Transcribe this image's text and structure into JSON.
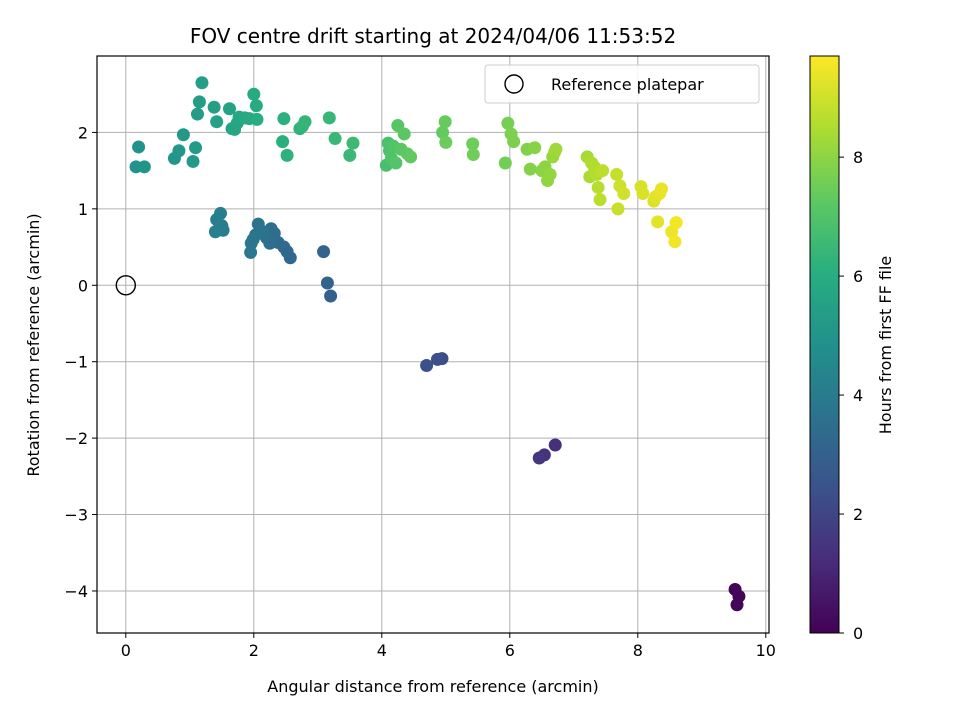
{
  "chart_data": {
    "type": "scatter",
    "title": "FOV centre drift starting at 2024/04/06 11:53:52",
    "xlabel": "Angular distance from reference (arcmin)",
    "ylabel": "Rotation from reference (arcmin)",
    "xlim": [
      -0.45,
      10.05
    ],
    "ylim": [
      -4.55,
      3.0
    ],
    "xticks": [
      0,
      2,
      4,
      6,
      8,
      10
    ],
    "yticks": [
      -4,
      -3,
      -2,
      -1,
      0,
      1,
      2
    ],
    "grid": true,
    "legend": {
      "placement": "top-right",
      "entries": [
        "Reference platepar"
      ]
    },
    "reference_point": {
      "x": 0,
      "y": 0,
      "name": "Reference platepar"
    },
    "colorbar": {
      "label": "Hours from first FF file",
      "range": [
        0,
        9.7
      ],
      "ticks": [
        0,
        2,
        4,
        6,
        8
      ],
      "colormap": "viridis"
    },
    "points": [
      {
        "x": 9.52,
        "y": -3.98,
        "c": 0.05
      },
      {
        "x": 9.58,
        "y": -4.07,
        "c": 0.1
      },
      {
        "x": 9.55,
        "y": -4.18,
        "c": 0.15
      },
      {
        "x": 6.71,
        "y": -2.09,
        "c": 1.3
      },
      {
        "x": 6.54,
        "y": -2.22,
        "c": 1.4
      },
      {
        "x": 6.46,
        "y": -2.26,
        "c": 1.5
      },
      {
        "x": 4.94,
        "y": -0.96,
        "c": 2.3
      },
      {
        "x": 4.87,
        "y": -0.97,
        "c": 2.35
      },
      {
        "x": 4.7,
        "y": -1.05,
        "c": 2.4
      },
      {
        "x": 3.2,
        "y": -0.14,
        "c": 3.0
      },
      {
        "x": 3.15,
        "y": 0.03,
        "c": 3.05
      },
      {
        "x": 3.09,
        "y": 0.44,
        "c": 3.1
      },
      {
        "x": 2.57,
        "y": 0.36,
        "c": 3.2
      },
      {
        "x": 2.52,
        "y": 0.44,
        "c": 3.25
      },
      {
        "x": 2.47,
        "y": 0.5,
        "c": 3.3
      },
      {
        "x": 2.38,
        "y": 0.56,
        "c": 3.35
      },
      {
        "x": 2.32,
        "y": 0.68,
        "c": 3.4
      },
      {
        "x": 2.27,
        "y": 0.74,
        "c": 3.45
      },
      {
        "x": 2.25,
        "y": 0.55,
        "c": 3.5
      },
      {
        "x": 2.2,
        "y": 0.62,
        "c": 3.55
      },
      {
        "x": 2.14,
        "y": 0.7,
        "c": 3.6
      },
      {
        "x": 2.07,
        "y": 0.8,
        "c": 3.65
      },
      {
        "x": 2.03,
        "y": 0.66,
        "c": 3.7
      },
      {
        "x": 1.99,
        "y": 0.6,
        "c": 3.75
      },
      {
        "x": 1.96,
        "y": 0.55,
        "c": 3.8
      },
      {
        "x": 1.95,
        "y": 0.43,
        "c": 3.85
      },
      {
        "x": 1.52,
        "y": 0.72,
        "c": 4.0
      },
      {
        "x": 1.5,
        "y": 0.78,
        "c": 4.05
      },
      {
        "x": 1.48,
        "y": 0.94,
        "c": 4.1
      },
      {
        "x": 1.42,
        "y": 0.86,
        "c": 4.15
      },
      {
        "x": 1.4,
        "y": 0.7,
        "c": 4.2
      },
      {
        "x": 0.16,
        "y": 1.55,
        "c": 4.9
      },
      {
        "x": 0.2,
        "y": 1.81,
        "c": 4.95
      },
      {
        "x": 0.29,
        "y": 1.55,
        "c": 5.0
      },
      {
        "x": 0.76,
        "y": 1.66,
        "c": 5.05
      },
      {
        "x": 0.83,
        "y": 1.76,
        "c": 5.1
      },
      {
        "x": 0.9,
        "y": 1.97,
        "c": 5.15
      },
      {
        "x": 1.05,
        "y": 1.62,
        "c": 5.2
      },
      {
        "x": 1.09,
        "y": 1.8,
        "c": 5.25
      },
      {
        "x": 1.12,
        "y": 2.24,
        "c": 5.3
      },
      {
        "x": 1.15,
        "y": 2.4,
        "c": 5.35
      },
      {
        "x": 1.19,
        "y": 2.65,
        "c": 5.4
      },
      {
        "x": 1.38,
        "y": 2.33,
        "c": 5.45
      },
      {
        "x": 1.42,
        "y": 2.14,
        "c": 5.5
      },
      {
        "x": 1.62,
        "y": 2.31,
        "c": 5.55
      },
      {
        "x": 1.66,
        "y": 2.05,
        "c": 5.6
      },
      {
        "x": 1.7,
        "y": 2.04,
        "c": 5.65
      },
      {
        "x": 1.74,
        "y": 2.12,
        "c": 5.7
      },
      {
        "x": 1.77,
        "y": 2.2,
        "c": 5.75
      },
      {
        "x": 1.86,
        "y": 2.19,
        "c": 5.8
      },
      {
        "x": 1.93,
        "y": 2.18,
        "c": 5.85
      },
      {
        "x": 2.0,
        "y": 2.5,
        "c": 5.9
      },
      {
        "x": 2.04,
        "y": 2.35,
        "c": 5.95
      },
      {
        "x": 2.05,
        "y": 2.17,
        "c": 6.0
      },
      {
        "x": 2.45,
        "y": 1.88,
        "c": 6.1
      },
      {
        "x": 2.47,
        "y": 2.18,
        "c": 6.15
      },
      {
        "x": 2.52,
        "y": 1.7,
        "c": 6.2
      },
      {
        "x": 2.72,
        "y": 2.05,
        "c": 6.25
      },
      {
        "x": 2.76,
        "y": 2.08,
        "c": 6.3
      },
      {
        "x": 2.8,
        "y": 2.14,
        "c": 6.35
      },
      {
        "x": 3.18,
        "y": 2.19,
        "c": 6.4
      },
      {
        "x": 3.27,
        "y": 1.92,
        "c": 6.45
      },
      {
        "x": 3.5,
        "y": 1.7,
        "c": 6.5
      },
      {
        "x": 3.55,
        "y": 1.86,
        "c": 6.55
      },
      {
        "x": 4.07,
        "y": 1.57,
        "c": 6.8
      },
      {
        "x": 4.1,
        "y": 1.86,
        "c": 6.85
      },
      {
        "x": 4.12,
        "y": 1.76,
        "c": 6.9
      },
      {
        "x": 4.15,
        "y": 1.66,
        "c": 6.95
      },
      {
        "x": 4.18,
        "y": 1.82,
        "c": 7.0
      },
      {
        "x": 4.22,
        "y": 1.6,
        "c": 7.05
      },
      {
        "x": 4.25,
        "y": 2.09,
        "c": 7.1
      },
      {
        "x": 4.3,
        "y": 1.78,
        "c": 7.15
      },
      {
        "x": 4.35,
        "y": 1.98,
        "c": 7.2
      },
      {
        "x": 4.4,
        "y": 1.72,
        "c": 7.25
      },
      {
        "x": 4.45,
        "y": 1.68,
        "c": 7.3
      },
      {
        "x": 4.95,
        "y": 2.0,
        "c": 7.35
      },
      {
        "x": 4.99,
        "y": 2.14,
        "c": 7.4
      },
      {
        "x": 5.0,
        "y": 1.87,
        "c": 7.45
      },
      {
        "x": 5.42,
        "y": 1.85,
        "c": 7.5
      },
      {
        "x": 5.43,
        "y": 1.71,
        "c": 7.55
      },
      {
        "x": 5.93,
        "y": 1.6,
        "c": 7.6
      },
      {
        "x": 5.97,
        "y": 2.12,
        "c": 7.65
      },
      {
        "x": 6.02,
        "y": 1.98,
        "c": 7.7
      },
      {
        "x": 6.06,
        "y": 1.88,
        "c": 7.75
      },
      {
        "x": 6.27,
        "y": 1.78,
        "c": 7.8
      },
      {
        "x": 6.32,
        "y": 1.52,
        "c": 7.85
      },
      {
        "x": 6.39,
        "y": 1.8,
        "c": 7.9
      },
      {
        "x": 6.5,
        "y": 1.5,
        "c": 7.95
      },
      {
        "x": 6.55,
        "y": 1.55,
        "c": 8.0
      },
      {
        "x": 6.59,
        "y": 1.37,
        "c": 8.05
      },
      {
        "x": 6.63,
        "y": 1.45,
        "c": 8.1
      },
      {
        "x": 6.67,
        "y": 1.68,
        "c": 8.15
      },
      {
        "x": 6.7,
        "y": 1.74,
        "c": 8.2
      },
      {
        "x": 6.72,
        "y": 1.78,
        "c": 8.25
      },
      {
        "x": 7.21,
        "y": 1.68,
        "c": 8.4
      },
      {
        "x": 7.25,
        "y": 1.42,
        "c": 8.45
      },
      {
        "x": 7.28,
        "y": 1.6,
        "c": 8.5
      },
      {
        "x": 7.32,
        "y": 1.55,
        "c": 8.55
      },
      {
        "x": 7.36,
        "y": 1.45,
        "c": 8.6
      },
      {
        "x": 7.38,
        "y": 1.28,
        "c": 8.65
      },
      {
        "x": 7.41,
        "y": 1.12,
        "c": 8.7
      },
      {
        "x": 7.45,
        "y": 1.5,
        "c": 8.75
      },
      {
        "x": 7.67,
        "y": 1.45,
        "c": 8.85
      },
      {
        "x": 7.69,
        "y": 1.0,
        "c": 8.9
      },
      {
        "x": 7.72,
        "y": 1.3,
        "c": 8.95
      },
      {
        "x": 7.78,
        "y": 1.2,
        "c": 9.0
      },
      {
        "x": 8.05,
        "y": 1.29,
        "c": 9.1
      },
      {
        "x": 8.08,
        "y": 1.2,
        "c": 9.15
      },
      {
        "x": 8.25,
        "y": 1.1,
        "c": 9.2
      },
      {
        "x": 8.28,
        "y": 1.16,
        "c": 9.25
      },
      {
        "x": 8.31,
        "y": 0.83,
        "c": 9.3
      },
      {
        "x": 8.34,
        "y": 1.2,
        "c": 9.35
      },
      {
        "x": 8.37,
        "y": 1.26,
        "c": 9.4
      },
      {
        "x": 8.53,
        "y": 0.7,
        "c": 9.45
      },
      {
        "x": 8.58,
        "y": 0.57,
        "c": 9.5
      },
      {
        "x": 8.6,
        "y": 0.82,
        "c": 9.55
      }
    ]
  }
}
